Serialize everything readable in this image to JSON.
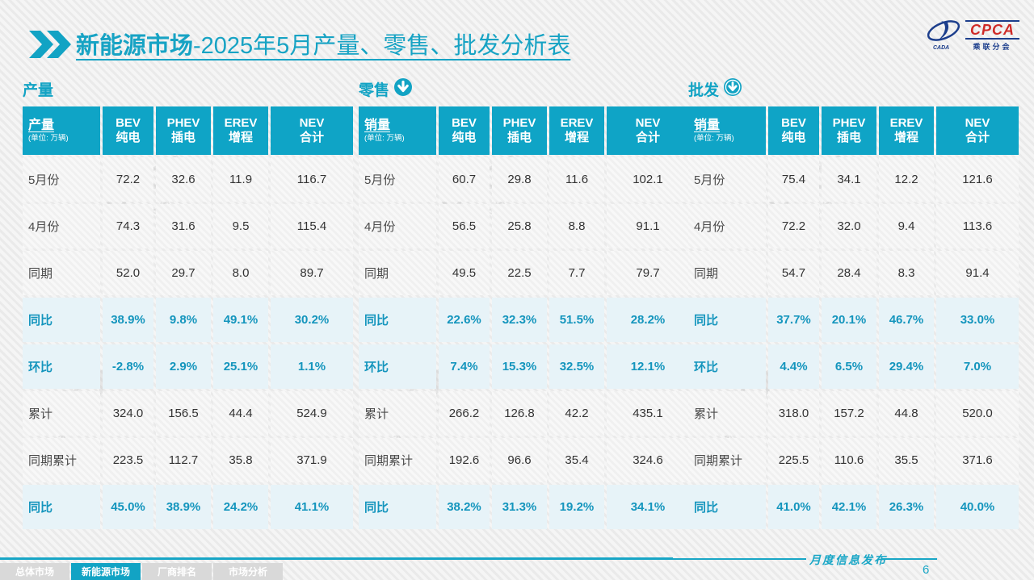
{
  "title": {
    "highlight": "新能源市场",
    "rest": "-2025年5月产量、零售、批发分析表"
  },
  "logo": {
    "cpca": "CPCA",
    "sub": "乘联分会",
    "emblem": "CADA"
  },
  "watermark": {
    "big": "CPCA",
    "small": "乘联分会"
  },
  "colors": {
    "teal": "#0fa4c6",
    "highlight_row_bg": "#e7f3f8",
    "highlight_text": "#1495bd",
    "logo_red": "#cf2a27",
    "logo_blue": "#1c3e8c"
  },
  "tables": [
    {
      "section_label": "产量",
      "has_icon": false,
      "measure": "产量",
      "unit": "(单位: 万辆)",
      "columns": [
        [
          "BEV",
          "纯电"
        ],
        [
          "PHEV",
          "插电"
        ],
        [
          "EREV",
          "增程"
        ],
        [
          "NEV",
          "合计"
        ]
      ],
      "rows": [
        {
          "label": "5月份",
          "values": [
            "72.2",
            "32.6",
            "11.9",
            "116.7"
          ],
          "highlight": false
        },
        {
          "label": "4月份",
          "values": [
            "74.3",
            "31.6",
            "9.5",
            "115.4"
          ],
          "highlight": false
        },
        {
          "label": "同期",
          "values": [
            "52.0",
            "29.7",
            "8.0",
            "89.7"
          ],
          "highlight": false
        },
        {
          "label": "同比",
          "values": [
            "38.9%",
            "9.8%",
            "49.1%",
            "30.2%"
          ],
          "highlight": true
        },
        {
          "label": "环比",
          "values": [
            "-2.8%",
            "2.9%",
            "25.1%",
            "1.1%"
          ],
          "highlight": true
        },
        {
          "label": "累计",
          "values": [
            "324.0",
            "156.5",
            "44.4",
            "524.9"
          ],
          "highlight": false
        },
        {
          "label": "同期累计",
          "values": [
            "223.5",
            "112.7",
            "35.8",
            "371.9"
          ],
          "highlight": false
        },
        {
          "label": "同比",
          "values": [
            "45.0%",
            "38.9%",
            "24.2%",
            "41.1%"
          ],
          "highlight": true
        }
      ]
    },
    {
      "section_label": "零售",
      "has_icon": true,
      "measure": "销量",
      "unit": "(单位: 万辆)",
      "columns": [
        [
          "BEV",
          "纯电"
        ],
        [
          "PHEV",
          "插电"
        ],
        [
          "EREV",
          "增程"
        ],
        [
          "NEV",
          "合计"
        ]
      ],
      "rows": [
        {
          "label": "5月份",
          "values": [
            "60.7",
            "29.8",
            "11.6",
            "102.1"
          ],
          "highlight": false
        },
        {
          "label": "4月份",
          "values": [
            "56.5",
            "25.8",
            "8.8",
            "91.1"
          ],
          "highlight": false
        },
        {
          "label": "同期",
          "values": [
            "49.5",
            "22.5",
            "7.7",
            "79.7"
          ],
          "highlight": false
        },
        {
          "label": "同比",
          "values": [
            "22.6%",
            "32.3%",
            "51.5%",
            "28.2%"
          ],
          "highlight": true
        },
        {
          "label": "环比",
          "values": [
            "7.4%",
            "15.3%",
            "32.5%",
            "12.1%"
          ],
          "highlight": true
        },
        {
          "label": "累计",
          "values": [
            "266.2",
            "126.8",
            "42.2",
            "435.1"
          ],
          "highlight": false
        },
        {
          "label": "同期累计",
          "values": [
            "192.6",
            "96.6",
            "35.4",
            "324.6"
          ],
          "highlight": false
        },
        {
          "label": "同比",
          "values": [
            "38.2%",
            "31.3%",
            "19.2%",
            "34.1%"
          ],
          "highlight": true
        }
      ]
    },
    {
      "section_label": "批发",
      "has_icon": true,
      "measure": "销量",
      "unit": "(单位: 万辆)",
      "columns": [
        [
          "BEV",
          "纯电"
        ],
        [
          "PHEV",
          "插电"
        ],
        [
          "EREV",
          "增程"
        ],
        [
          "NEV",
          "合计"
        ]
      ],
      "rows": [
        {
          "label": "5月份",
          "values": [
            "75.4",
            "34.1",
            "12.2",
            "121.6"
          ],
          "highlight": false
        },
        {
          "label": "4月份",
          "values": [
            "72.2",
            "32.0",
            "9.4",
            "113.6"
          ],
          "highlight": false
        },
        {
          "label": "同期",
          "values": [
            "54.7",
            "28.4",
            "8.3",
            "91.4"
          ],
          "highlight": false
        },
        {
          "label": "同比",
          "values": [
            "37.7%",
            "20.1%",
            "46.7%",
            "33.0%"
          ],
          "highlight": true
        },
        {
          "label": "环比",
          "values": [
            "4.4%",
            "6.5%",
            "29.4%",
            "7.0%"
          ],
          "highlight": true
        },
        {
          "label": "累计",
          "values": [
            "318.0",
            "157.2",
            "44.8",
            "520.0"
          ],
          "highlight": false
        },
        {
          "label": "同期累计",
          "values": [
            "225.5",
            "110.6",
            "35.5",
            "371.6"
          ],
          "highlight": false
        },
        {
          "label": "同比",
          "values": [
            "41.0%",
            "42.1%",
            "26.3%",
            "40.0%"
          ],
          "highlight": true
        }
      ]
    }
  ],
  "footer": {
    "publish_label": "月度信息发布",
    "page_number": "6",
    "tabs": [
      {
        "label": "总体市场",
        "active": false
      },
      {
        "label": "新能源市场",
        "active": true
      },
      {
        "label": "厂商排名",
        "active": false
      },
      {
        "label": "市场分析",
        "active": false
      }
    ]
  }
}
